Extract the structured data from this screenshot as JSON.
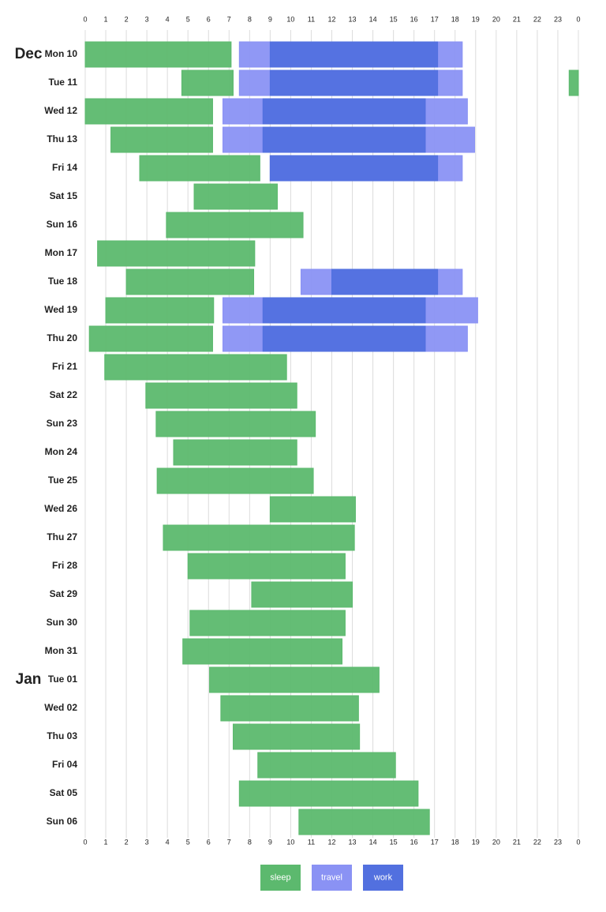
{
  "chart_data": {
    "type": "timeline",
    "categories": [
      "Mon 10",
      "Tue 11",
      "Wed 12",
      "Thu 13",
      "Fri 14",
      "Sat 15",
      "Sun 16",
      "Mon 17",
      "Tue 18",
      "Wed 19",
      "Thu 20",
      "Fri 21",
      "Sat 22",
      "Sun 23",
      "Mon 24",
      "Tue 25",
      "Wed 26",
      "Thu 27",
      "Fri 28",
      "Sat 29",
      "Sun 30",
      "Mon 31",
      "Tue 01",
      "Wed 02",
      "Thu 03",
      "Fri 04",
      "Sat 05",
      "Sun 06"
    ],
    "month_labels": [
      "Dec",
      null,
      null,
      null,
      null,
      null,
      null,
      null,
      null,
      null,
      null,
      null,
      null,
      null,
      null,
      null,
      null,
      null,
      null,
      null,
      null,
      null,
      "Jan",
      null,
      null,
      null,
      null,
      null
    ],
    "xlim": [
      0,
      24
    ],
    "xticks": [
      0,
      1,
      2,
      3,
      4,
      5,
      6,
      7,
      8,
      9,
      10,
      11,
      12,
      13,
      14,
      15,
      16,
      17,
      18,
      19,
      20,
      21,
      22,
      23,
      {
        "value": 24,
        "label": "0"
      }
    ],
    "grid": true,
    "series": [
      {
        "name": "sleep",
        "color": "#5cb96e",
        "values": [
          [
            [
              0,
              7.1
            ]
          ],
          [
            [
              4.7,
              7.2
            ],
            [
              23.55,
              24
            ]
          ],
          [
            [
              0,
              6.2
            ]
          ],
          [
            [
              1.25,
              6.2
            ]
          ],
          [
            [
              2.65,
              8.5
            ]
          ],
          [
            [
              5.3,
              9.35
            ]
          ],
          [
            [
              3.95,
              10.6
            ]
          ],
          [
            [
              0.6,
              8.25
            ]
          ],
          [
            [
              2.0,
              8.2
            ]
          ],
          [
            [
              1.0,
              6.25
            ]
          ],
          [
            [
              0.2,
              6.2
            ]
          ],
          [
            [
              0.95,
              9.8
            ]
          ],
          [
            [
              2.95,
              10.3
            ]
          ],
          [
            [
              3.45,
              11.2
            ]
          ],
          [
            [
              4.3,
              10.3
            ]
          ],
          [
            [
              3.5,
              11.1
            ]
          ],
          [
            [
              9.0,
              13.15
            ]
          ],
          [
            [
              3.8,
              13.1
            ]
          ],
          [
            [
              5.0,
              12.65
            ]
          ],
          [
            [
              8.1,
              13.0
            ]
          ],
          [
            [
              5.1,
              12.65
            ]
          ],
          [
            [
              4.75,
              12.5
            ]
          ],
          [
            [
              6.05,
              14.3
            ]
          ],
          [
            [
              6.6,
              13.3
            ]
          ],
          [
            [
              7.2,
              13.35
            ]
          ],
          [
            [
              8.4,
              15.1
            ]
          ],
          [
            [
              7.5,
              16.2
            ]
          ],
          [
            [
              10.4,
              16.75
            ]
          ]
        ]
      },
      {
        "name": "travel",
        "color": "#8a92f4",
        "values": [
          [
            [
              7.5,
              18.35
            ]
          ],
          [
            [
              7.5,
              18.35
            ]
          ],
          [
            [
              6.7,
              18.6
            ]
          ],
          [
            [
              6.7,
              18.95
            ]
          ],
          [
            [
              9.0,
              18.35
            ]
          ],
          [],
          [],
          [],
          [
            [
              10.5,
              18.35
            ]
          ],
          [
            [
              6.7,
              19.1
            ]
          ],
          [
            [
              6.7,
              18.6
            ]
          ],
          [],
          [],
          [],
          [],
          [],
          [],
          [],
          [],
          [],
          [],
          [],
          [],
          [],
          [],
          [],
          [],
          []
        ]
      },
      {
        "name": "work",
        "color": "#5270df",
        "values": [
          [
            [
              9.0,
              17.15
            ]
          ],
          [
            [
              9.0,
              17.15
            ]
          ],
          [
            [
              8.65,
              16.55
            ]
          ],
          [
            [
              8.65,
              16.55
            ]
          ],
          [
            [
              9.0,
              17.15
            ]
          ],
          [],
          [],
          [],
          [
            [
              12.0,
              17.15
            ]
          ],
          [
            [
              8.65,
              16.55
            ]
          ],
          [
            [
              8.65,
              16.55
            ]
          ],
          [],
          [],
          [],
          [],
          [],
          [],
          [],
          [],
          [],
          [],
          [],
          [],
          [],
          [],
          [],
          [],
          []
        ]
      }
    ]
  }
}
